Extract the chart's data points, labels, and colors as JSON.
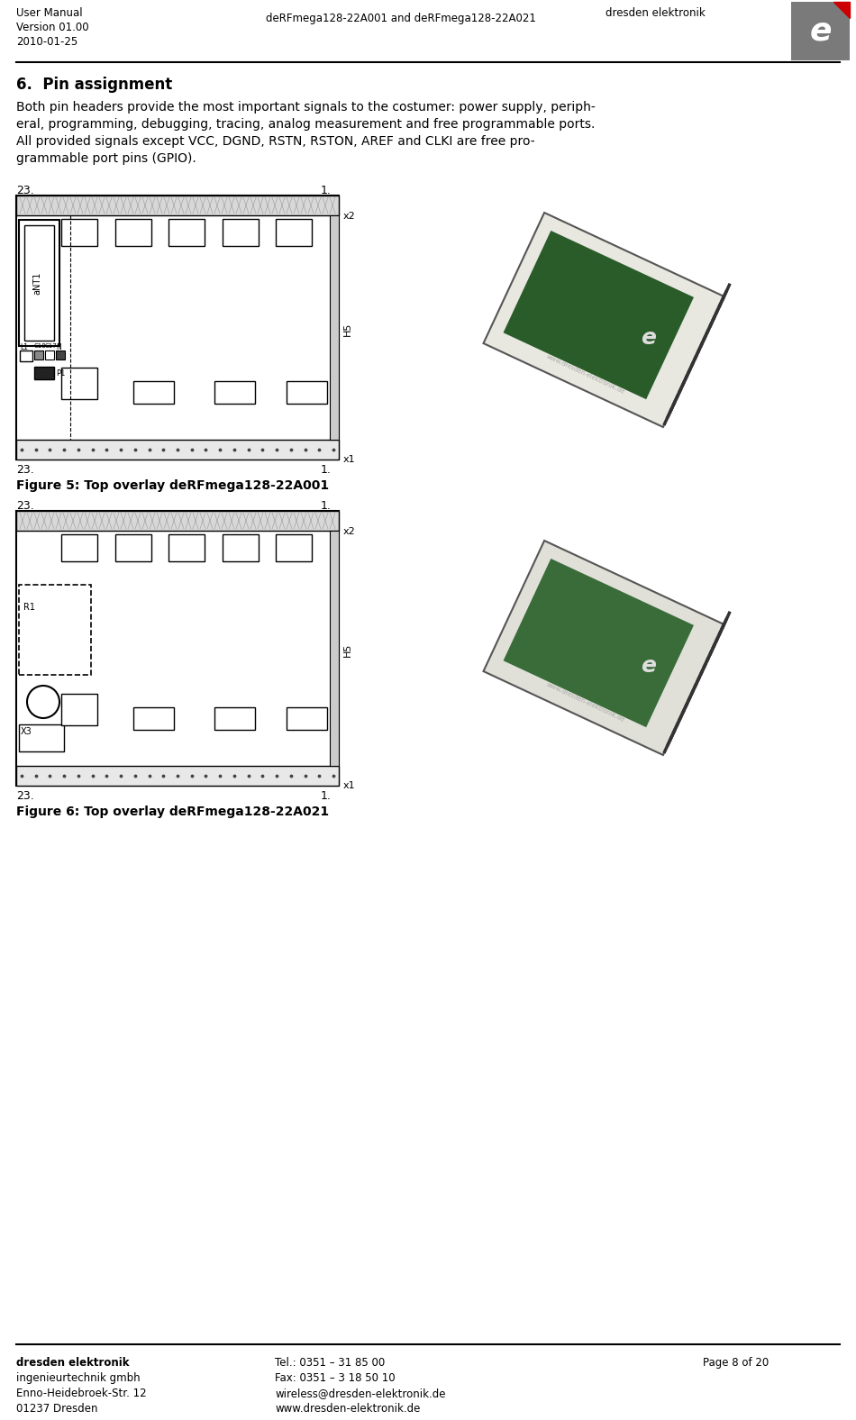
{
  "page_bg": "#ffffff",
  "header_left_lines": [
    "User Manual",
    "Version 01.00",
    "2010-01-25"
  ],
  "header_center": "deRFmega128-22A001 and deRFmega128-22A021",
  "header_right_logo_text": "dresden elektronik",
  "section_title": "6.  Pin assignment",
  "body_text_lines": [
    "Both pin headers provide the most important signals to the costumer: power supply, periph-",
    "eral, programming, debugging, tracing, analog measurement and free programmable ports.",
    "All provided signals except VCC, DGND, RSTN, RSTON, AREF and CLKI are free pro-",
    "grammable port pins (GPIO)."
  ],
  "figure5_caption": "Figure 5: Top overlay deRFmega128-22A001",
  "figure6_caption": "Figure 6: Top overlay deRFmega128-22A021",
  "footer_col1": [
    "dresden elektronik",
    "ingenieurtechnik gmbh",
    "Enno-Heidebroek-Str. 12",
    "01237 Dresden"
  ],
  "footer_col2": [
    "Tel.: 0351 – 31 85 00",
    "Fax: 0351 – 3 18 50 10",
    "wireless@dresden-elektronik.de",
    "www.dresden-elektronik.de"
  ],
  "footer_col3": "Page 8 of 20",
  "text_color": "#000000",
  "logo_bg": "#7a7a7a",
  "logo_red": "#cc0000"
}
